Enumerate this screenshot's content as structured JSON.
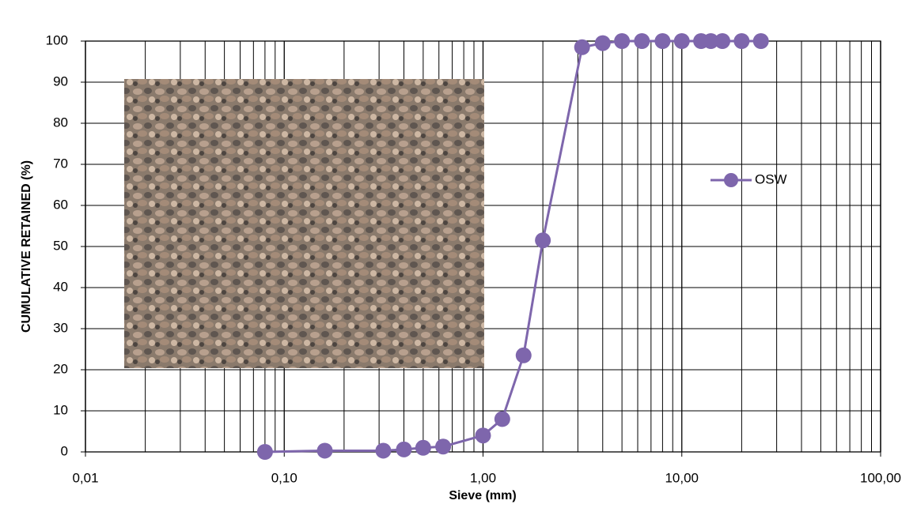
{
  "chart_data": {
    "type": "line",
    "x_label": "Sieve (mm)",
    "y_label": "CUMULATIVE RETAINED (%)",
    "x_log": true,
    "grid": true,
    "legend": "right",
    "xlim": [
      0.01,
      100
    ],
    "xticks": [
      {
        "value": 0.01,
        "label": "0,01"
      },
      {
        "value": 0.1,
        "label": "0,10"
      },
      {
        "value": 1,
        "label": "1,00"
      },
      {
        "value": 10,
        "label": "10,00"
      },
      {
        "value": 100,
        "label": "100,00"
      }
    ],
    "xminorticks": [
      0.02,
      0.03,
      0.04,
      0.05,
      0.06,
      0.07,
      0.08,
      0.09,
      0.2,
      0.3,
      0.4,
      0.5,
      0.6,
      0.7,
      0.8,
      0.9,
      2,
      3,
      4,
      5,
      6,
      7,
      8,
      9,
      20,
      30,
      40,
      50,
      60,
      70,
      80,
      90
    ],
    "ylim": [
      0,
      100
    ],
    "yticks": [
      0,
      10,
      20,
      30,
      40,
      50,
      60,
      70,
      80,
      90,
      100
    ],
    "x": [
      0.08,
      0.16,
      0.315,
      0.4,
      0.5,
      0.63,
      1.0,
      1.25,
      1.6,
      2.0,
      3.15,
      4,
      5,
      6.3,
      8,
      10,
      12.5,
      14,
      16,
      20,
      25
    ],
    "series": [
      {
        "name": "OSW",
        "color": "#7e66ac",
        "values": [
          0,
          0.3,
          0.3,
          0.6,
          1,
          1.3,
          4,
          8,
          23.5,
          51.5,
          98.5,
          99.5,
          100,
          100,
          100,
          100,
          100,
          100,
          100,
          100,
          100
        ]
      }
    ]
  }
}
